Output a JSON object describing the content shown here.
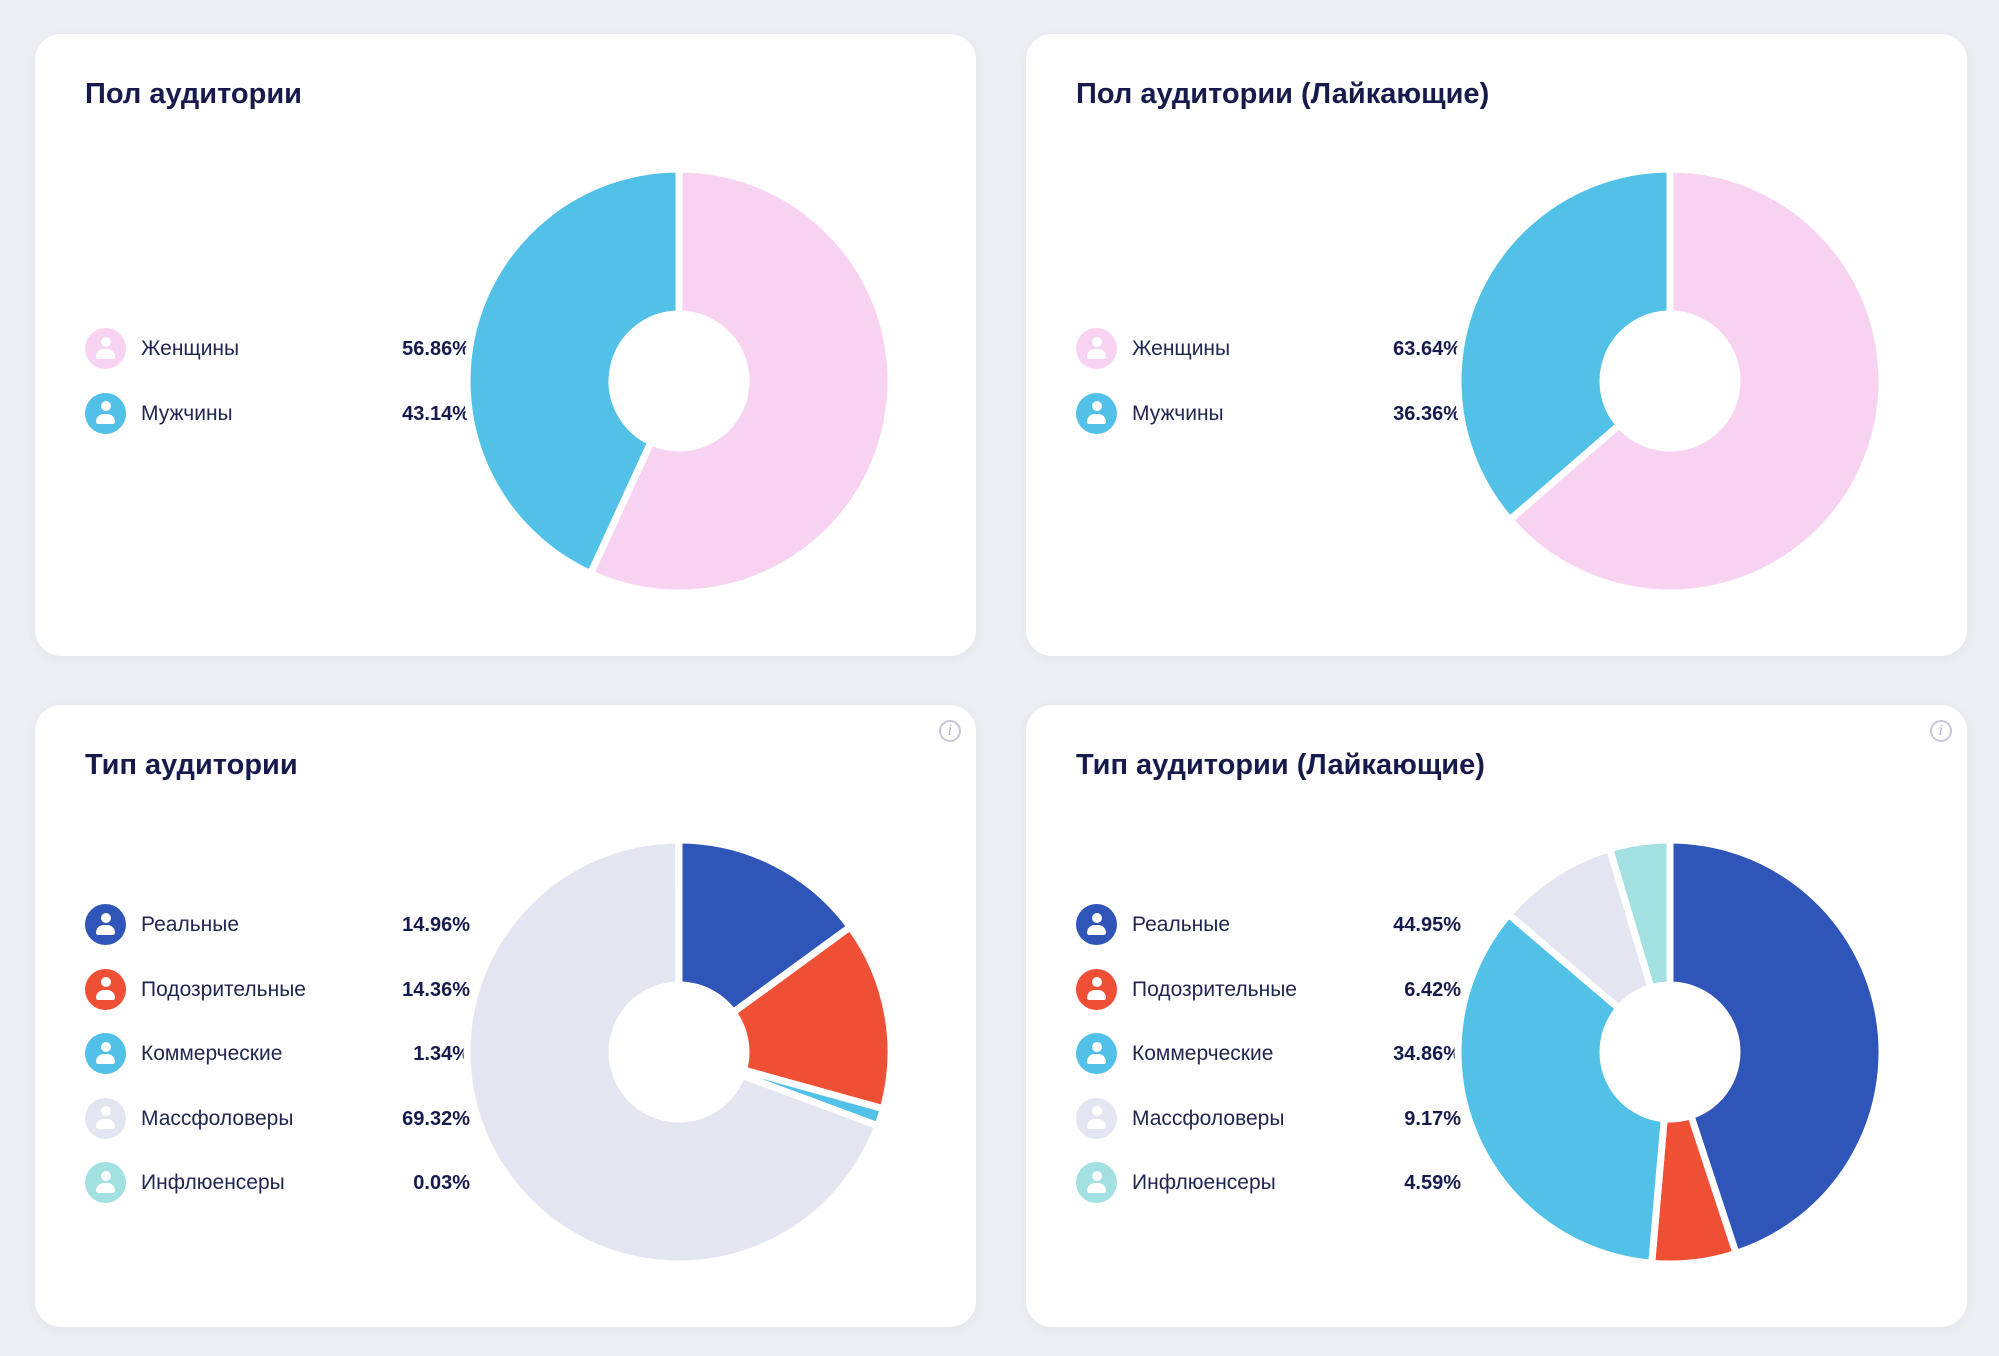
{
  "cards": [
    {
      "title": "Пол аудитории",
      "info": false,
      "legend": [
        {
          "label": "Женщины",
          "value_text": "56.86%",
          "icon": "user-icon",
          "color": "#f8d3f1"
        },
        {
          "label": "Мужчины",
          "value_text": "43.14%",
          "icon": "user-icon",
          "color": "#52c1e7"
        }
      ],
      "chart_data": {
        "type": "pie",
        "title": "Пол аудитории",
        "categories": [
          "Женщины",
          "Мужчины"
        ],
        "values": [
          56.86,
          43.14
        ],
        "colors": [
          "#f8d3f1",
          "#52c1e7"
        ]
      }
    },
    {
      "title": "Пол аудитории (Лайкающие)",
      "info": false,
      "legend": [
        {
          "label": "Женщины",
          "value_text": "63.64%",
          "icon": "user-icon",
          "color": "#f8d3f1"
        },
        {
          "label": "Мужчины",
          "value_text": "36.36%",
          "icon": "user-icon",
          "color": "#52c1e7"
        }
      ],
      "chart_data": {
        "type": "pie",
        "title": "Пол аудитории (Лайкающие)",
        "categories": [
          "Женщины",
          "Мужчины"
        ],
        "values": [
          63.64,
          36.36
        ],
        "colors": [
          "#f8d3f1",
          "#52c1e7"
        ]
      }
    },
    {
      "title": "Тип аудитории",
      "info": true,
      "info_icon_glyph": "i",
      "legend": [
        {
          "label": "Реальные",
          "value_text": "14.96%",
          "icon": "user-icon",
          "color": "#2f55b8"
        },
        {
          "label": "Подозрительные",
          "value_text": "14.36%",
          "icon": "user-icon",
          "color": "#ef4f35"
        },
        {
          "label": "Коммерческие",
          "value_text": "1.34%",
          "icon": "user-icon",
          "color": "#52c1e7"
        },
        {
          "label": "Массфоловеры",
          "value_text": "69.32%",
          "icon": "user-icon",
          "color": "#e3e5f0"
        },
        {
          "label": "Инфлюенсеры",
          "value_text": "0.03%",
          "icon": "user-icon",
          "color": "#a3e0e1"
        }
      ],
      "chart_data": {
        "type": "pie",
        "title": "Тип аудитории",
        "categories": [
          "Реальные",
          "Подозрительные",
          "Коммерческие",
          "Массфоловеры",
          "Инфлюенсеры"
        ],
        "values": [
          14.96,
          14.36,
          1.34,
          69.32,
          0.03
        ],
        "colors": [
          "#2f55b8",
          "#ef4f35",
          "#52c1e7",
          "#e3e5f0",
          "#a3e0e1"
        ]
      }
    },
    {
      "title": "Тип аудитории (Лайкающие)",
      "info": true,
      "info_icon_glyph": "i",
      "legend": [
        {
          "label": "Реальные",
          "value_text": "44.95%",
          "icon": "user-icon",
          "color": "#2f55b8"
        },
        {
          "label": "Подозрительные",
          "value_text": "6.42%",
          "icon": "user-icon",
          "color": "#ef4f35"
        },
        {
          "label": "Коммерческие",
          "value_text": "34.86%",
          "icon": "user-icon",
          "color": "#52c1e7"
        },
        {
          "label": "Массфоловеры",
          "value_text": "9.17%",
          "icon": "user-icon",
          "color": "#e3e5f0"
        },
        {
          "label": "Инфлюенсеры",
          "value_text": "4.59%",
          "icon": "user-icon",
          "color": "#a3e0e1"
        }
      ],
      "chart_data": {
        "type": "pie",
        "title": "Тип аудитории (Лайкающие)",
        "categories": [
          "Реальные",
          "Подозрительные",
          "Коммерческие",
          "Массфоловеры",
          "Инфлюенсеры"
        ],
        "values": [
          44.95,
          6.42,
          34.86,
          9.17,
          4.59
        ],
        "colors": [
          "#2f55b8",
          "#ef4f35",
          "#52c1e7",
          "#e3e5f0",
          "#a3e0e1"
        ]
      }
    }
  ]
}
